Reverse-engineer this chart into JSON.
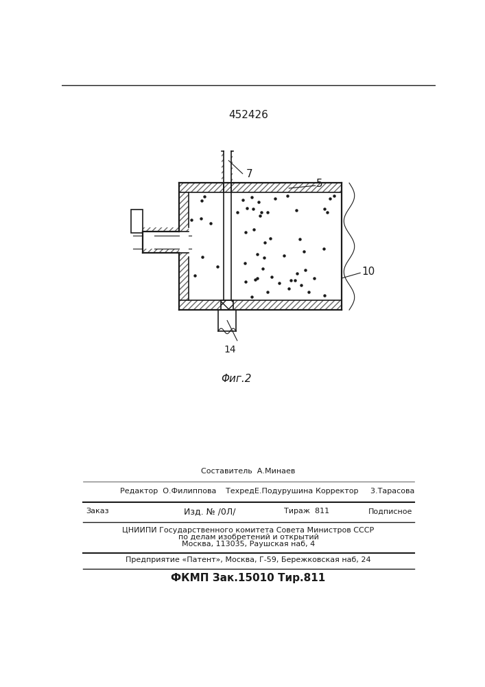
{
  "patent_number": "452426",
  "fig_label": "Φиг.2",
  "bg_color": "#ffffff",
  "line_color": "#1a1a1a",
  "footer": {
    "sostavitel_label": "Составитель",
    "sostavitel_name": "А.Минаев",
    "redaktor_label": "Редактор",
    "redaktor_name": "О.Филиппова",
    "tehred_label": "Техред",
    "tehred_name": "Е.Подурушина",
    "korrektor_label": "Корректор",
    "korrektor_name": "3.Тарасова",
    "zakaz": "Заказ",
    "izd": "Изд. № /0Л/",
    "tirazh": "Тираж  811",
    "podpisnoe": "Подписное",
    "cniip1": "ЦНИИПИ Государственного комитета Совета Министров СССР",
    "cniip2": "по делам изобретений и открытий",
    "moscow": "Москва, 113035, Раушская наб, 4",
    "predpr": "Предприятие «Патент», Москва, Г-59, Бережковская наб, 24",
    "fkmp": "ФКМП Зак.15010 Тир.811"
  }
}
